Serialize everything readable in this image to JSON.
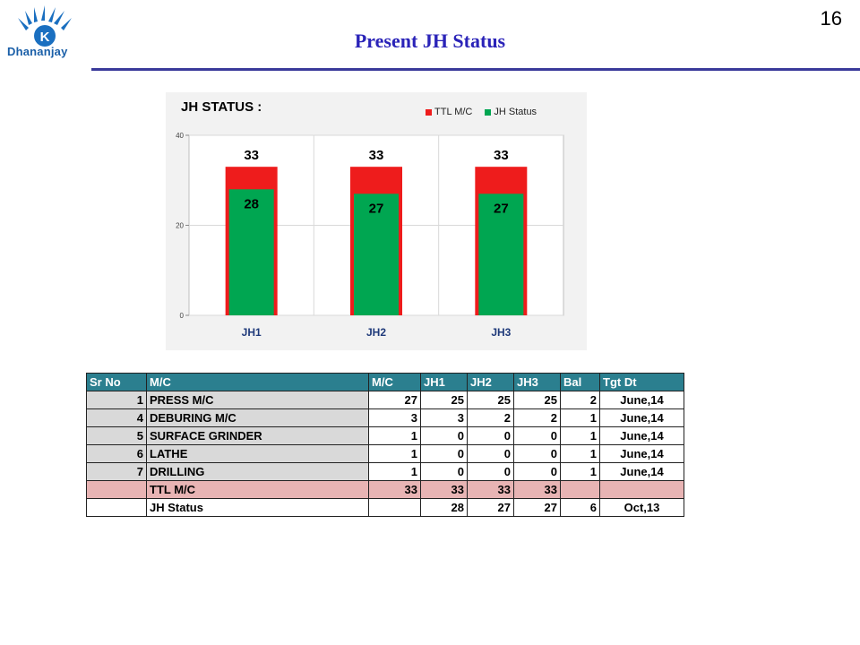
{
  "header": {
    "logo_text": "Dhananjay",
    "title": "Present JH Status",
    "page_number": "16"
  },
  "colors": {
    "ttl": "#ee1c1c",
    "jh": "#00a651",
    "header_row": "#2b7f8f",
    "pink_row": "#e8b4b4",
    "grey_cell": "#d9d9d9",
    "title": "#2a23b8"
  },
  "chart_data": {
    "type": "bar",
    "title": "JH STATUS :",
    "categories": [
      "JH1",
      "JH2",
      "JH3"
    ],
    "series": [
      {
        "name": "TTL M/C",
        "values": [
          33,
          33,
          33
        ]
      },
      {
        "name": "JH Status",
        "values": [
          28,
          27,
          27
        ]
      }
    ],
    "ylim": [
      0,
      40
    ],
    "yticks": [
      "0",
      "20",
      "40"
    ],
    "grid": true,
    "legend": "top-right",
    "overlap": true
  },
  "table": {
    "headers": [
      "Sr No",
      "M/C",
      "M/C",
      "JH1",
      "JH2",
      "JH3",
      "Bal",
      "Tgt Dt"
    ],
    "rows": [
      {
        "sr": "1",
        "mc": "PRESS M/C",
        "mc_count": "27",
        "jh1": "25",
        "jh2": "25",
        "jh3": "25",
        "bal": "2",
        "tgt": "June,14"
      },
      {
        "sr": "4",
        "mc": "DEBURING M/C",
        "mc_count": "3",
        "jh1": "3",
        "jh2": "2",
        "jh3": "2",
        "bal": "1",
        "tgt": "June,14"
      },
      {
        "sr": "5",
        "mc": "SURFACE GRINDER",
        "mc_count": "1",
        "jh1": "0",
        "jh2": "0",
        "jh3": "0",
        "bal": "1",
        "tgt": "June,14"
      },
      {
        "sr": "6",
        "mc": "LATHE",
        "mc_count": "1",
        "jh1": "0",
        "jh2": "0",
        "jh3": "0",
        "bal": "1",
        "tgt": "June,14"
      },
      {
        "sr": "7",
        "mc": "DRILLING",
        "mc_count": "1",
        "jh1": "0",
        "jh2": "0",
        "jh3": "0",
        "bal": "1",
        "tgt": "June,14"
      }
    ],
    "ttl_row": {
      "label": "TTL M/C",
      "mc_count": "33",
      "jh1": "33",
      "jh2": "33",
      "jh3": "33"
    },
    "status_row": {
      "label": "JH Status",
      "jh1": "28",
      "jh2": "27",
      "jh3": "27",
      "bal": "6",
      "tgt": "Oct,13"
    }
  }
}
